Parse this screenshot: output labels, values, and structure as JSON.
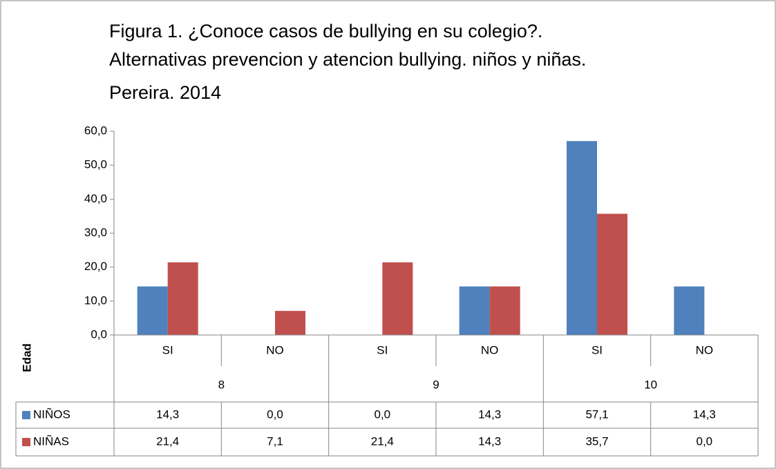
{
  "chart_data": {
    "type": "bar",
    "title": [
      "Figura 1. ¿Conoce casos de bullying en su colegio?.",
      "Alternativas prevencion y atencion bullying. niños y niñas."
    ],
    "subtitle": "Pereira. 2014",
    "x_label": "Edad",
    "categories": [
      "SI",
      "NO",
      "SI",
      "NO",
      "SI",
      "NO"
    ],
    "group_labels": [
      "8",
      "9",
      "10"
    ],
    "series": [
      {
        "name": "NIÑOS",
        "color": "#4f81bd",
        "values": [
          14.3,
          0.0,
          0.0,
          14.3,
          57.1,
          14.3
        ],
        "value_labels": [
          "14,3",
          "0,0",
          "0,0",
          "14,3",
          "57,1",
          "14,3"
        ]
      },
      {
        "name": "NIÑAS",
        "color": "#c0504d",
        "values": [
          21.4,
          7.1,
          21.4,
          14.3,
          35.7,
          0.0
        ],
        "value_labels": [
          "21,4",
          "7,1",
          "21,4",
          "14,3",
          "35,7",
          "0,0"
        ]
      }
    ],
    "ylim": [
      0,
      60
    ],
    "yticks": [
      {
        "value": 0,
        "label": "0,0"
      },
      {
        "value": 10,
        "label": "10,0"
      },
      {
        "value": 20,
        "label": "20,0"
      },
      {
        "value": 30,
        "label": "30,0"
      },
      {
        "value": 40,
        "label": "40,0"
      },
      {
        "value": 50,
        "label": "50,0"
      },
      {
        "value": 60,
        "label": "60,0"
      }
    ]
  }
}
